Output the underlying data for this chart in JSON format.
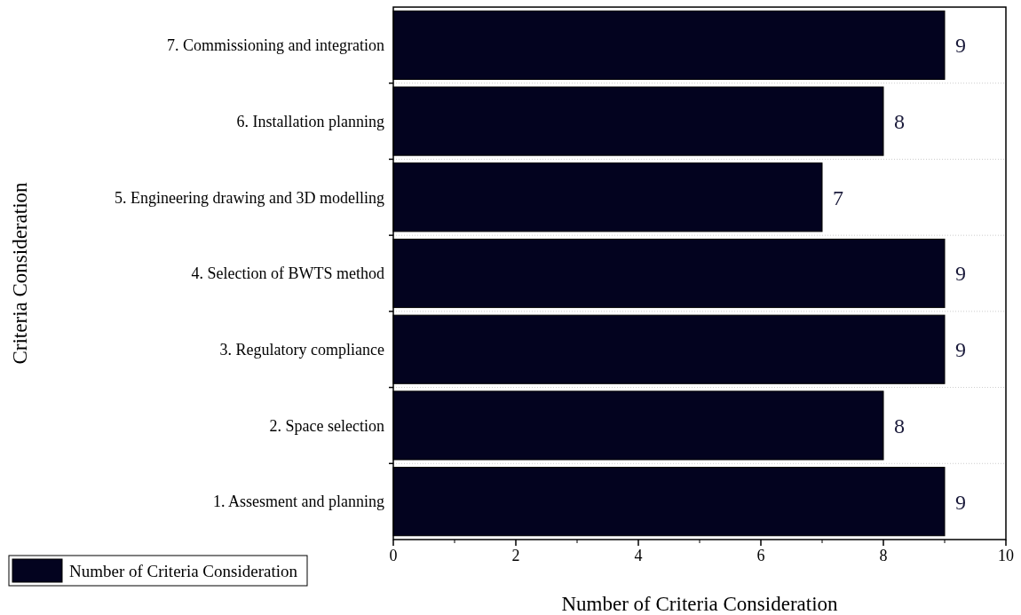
{
  "chart_data": {
    "type": "bar",
    "orientation": "horizontal",
    "xlabel": "Number of Criteria Consideration",
    "ylabel": "Criteria Consideration",
    "categories": [
      "7. Commissioning and integration",
      "6. Installation planning",
      "5. Engineering drawing and 3D modelling",
      "4. Selection of BWTS method",
      "3. Regulatory compliance",
      "2. Space selection",
      "1. Assesment and planning"
    ],
    "series": [
      {
        "name": "Number of Criteria Consideration",
        "color": "#03031f",
        "values": [
          9,
          8,
          7,
          9,
          9,
          8,
          9
        ]
      }
    ],
    "xlim": [
      0,
      10
    ],
    "xticks": [
      0,
      2,
      4,
      6,
      8,
      10
    ],
    "grid": "y",
    "legend": "bottom left",
    "data_labels": true
  }
}
